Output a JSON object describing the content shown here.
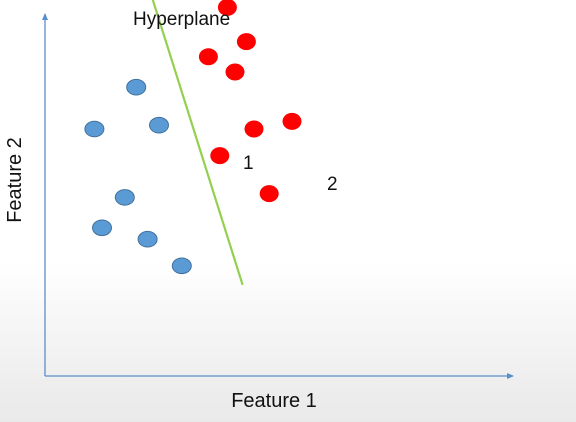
{
  "labels": {
    "hyperplane": "Hyperplane",
    "x_axis": "Feature 1",
    "y_axis": "Feature 2",
    "point_1": "1",
    "point_2": "2"
  },
  "colors": {
    "axis": "#5b8fc9",
    "class_a": "#5b9bd5",
    "class_a_outline": "#41719c",
    "class_b": "#ff0000",
    "hyperplane": "#92d050"
  },
  "chart_data": {
    "type": "scatter",
    "title": "",
    "xlabel": "Feature 1",
    "ylabel": "Feature 2",
    "grid": false,
    "series": [
      {
        "class": "blue",
        "points": [
          {
            "x": 2.4,
            "y": 7.6
          },
          {
            "x": 1.3,
            "y": 6.5
          },
          {
            "x": 3.0,
            "y": 6.6
          },
          {
            "x": 2.1,
            "y": 4.7
          },
          {
            "x": 1.5,
            "y": 3.9
          },
          {
            "x": 2.7,
            "y": 3.6
          },
          {
            "x": 3.6,
            "y": 2.9
          }
        ]
      },
      {
        "class": "red",
        "points": [
          {
            "x": 4.8,
            "y": 9.7
          },
          {
            "x": 5.3,
            "y": 8.8
          },
          {
            "x": 4.3,
            "y": 8.4
          },
          {
            "x": 5.0,
            "y": 8.0
          },
          {
            "x": 5.5,
            "y": 6.5
          },
          {
            "x": 6.5,
            "y": 6.7
          },
          {
            "x": 4.6,
            "y": 5.8
          },
          {
            "x": 5.9,
            "y": 4.8
          }
        ]
      }
    ],
    "hyperplane": {
      "from": {
        "x": 2.3,
        "y": 11.6
      },
      "to": {
        "x": 5.2,
        "y": 2.4
      }
    }
  }
}
